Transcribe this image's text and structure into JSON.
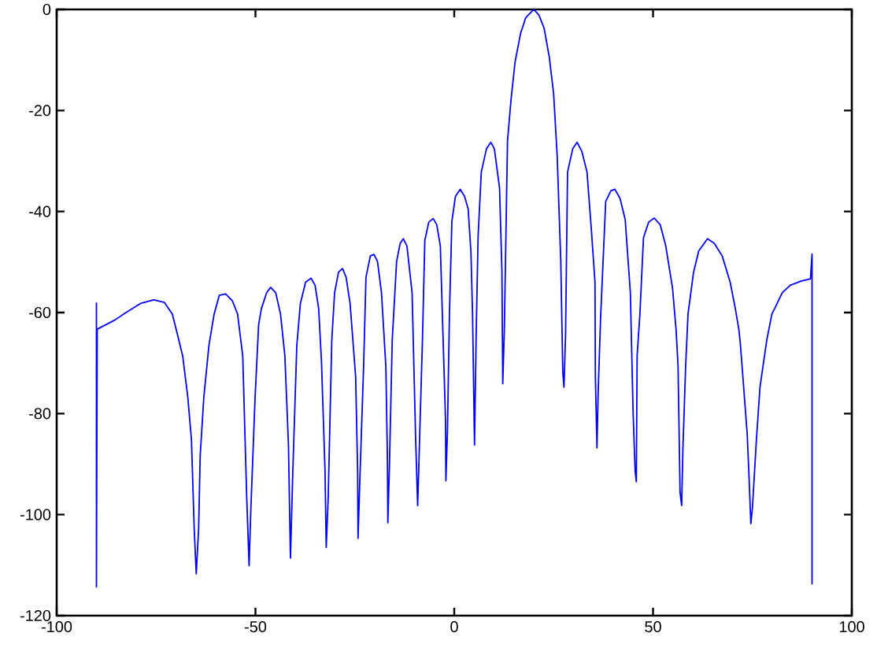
{
  "chart_data": {
    "type": "line",
    "x": [
      -90,
      -90,
      -89.8,
      -85.4,
      -82.8,
      -78.9,
      -75.6,
      -72.9,
      -70.9,
      -69.6,
      -68.3,
      -67.0,
      -66.1,
      -65.4,
      -64.9,
      -64.3,
      -63.9,
      -63.0,
      -61.7,
      -60.4,
      -59.1,
      -57.5,
      -55.8,
      -54.5,
      -53.2,
      -52.2,
      -51.6,
      -51.2,
      -50.1,
      -49.2,
      -48.5,
      -47.2,
      -46.2,
      -44.9,
      -43.7,
      -42.6,
      -41.7,
      -41.2,
      -40.6,
      -39.6,
      -38.7,
      -37.4,
      -36.0,
      -35.0,
      -34.1,
      -33.4,
      -32.5,
      -32.2,
      -31.7,
      -30.8,
      -30.1,
      -29.1,
      -28.1,
      -27.2,
      -26.2,
      -24.8,
      -24.3,
      -24.2,
      -23.8,
      -22.8,
      -22.2,
      -21.1,
      -20.2,
      -19.3,
      -18.3,
      -17.2,
      -16.8,
      -16.7,
      -16.3,
      -15.6,
      -14.5,
      -13.6,
      -12.8,
      -11.9,
      -10.6,
      -9.7,
      -9.2,
      -8.8,
      -8.0,
      -7.4,
      -6.4,
      -5.3,
      -4.4,
      -3.5,
      -2.2,
      -2.1,
      -1.7,
      -1.2,
      -0.6,
      0.3,
      1.5,
      2.6,
      3.5,
      4.2,
      4.6,
      5.1,
      5.5,
      6.0,
      6.8,
      8.1,
      9.2,
      10.1,
      11.4,
      12.0,
      12.2,
      12.6,
      13.4,
      14.3,
      15.3,
      16.7,
      18.0,
      20,
      21.3,
      22.6,
      23.9,
      25.0,
      25.9,
      26.8,
      27.3,
      27.6,
      28.0,
      28.5,
      29.8,
      30.9,
      32.1,
      33.4,
      34.5,
      35.4,
      35.5,
      35.9,
      36.2,
      36.8,
      38.1,
      39.4,
      40.4,
      41.7,
      43.0,
      44.3,
      45.0,
      45.5,
      45.8,
      46.0,
      46.7,
      47.6,
      48.9,
      50.3,
      51.8,
      53.2,
      54.9,
      55.8,
      56.3,
      56.8,
      57.2,
      57.5,
      58.2,
      58.8,
      60.2,
      61.5,
      63.7,
      65.4,
      67.4,
      69.4,
      70.7,
      71.6,
      72.0,
      72.6,
      73.7,
      74.2,
      74.6,
      75.0,
      76.0,
      76.9,
      78.6,
      79.9,
      80.6,
      82.5,
      84.5,
      87.2,
      89.6,
      90,
      90
    ],
    "values": [
      -58.0,
      -114.3,
      -63.3,
      -61.5,
      -60.1,
      -58.2,
      -57.5,
      -58.0,
      -60.3,
      -64.4,
      -68.6,
      -76.9,
      -85.2,
      -102.9,
      -111.7,
      -102.9,
      -88.3,
      -76.9,
      -66.5,
      -60.3,
      -56.6,
      -56.3,
      -57.7,
      -60.3,
      -68.6,
      -96.6,
      -110.1,
      -99.8,
      -76.9,
      -62.4,
      -59.2,
      -56.1,
      -55.0,
      -56.1,
      -60.3,
      -68.6,
      -86.2,
      -108.6,
      -91.4,
      -66.5,
      -58.2,
      -54.0,
      -53.2,
      -54.6,
      -59.2,
      -69.6,
      -91.4,
      -106.5,
      -96.6,
      -65.5,
      -56.1,
      -52.0,
      -51.3,
      -53.0,
      -58.2,
      -72.7,
      -91.4,
      -104.7,
      -94.5,
      -70.7,
      -53.0,
      -48.8,
      -48.5,
      -49.9,
      -56.1,
      -70.7,
      -89.3,
      -101.6,
      -90.4,
      -65.5,
      -49.9,
      -46.3,
      -45.4,
      -46.8,
      -56.1,
      -85.2,
      -98.2,
      -87.3,
      -65.5,
      -45.7,
      -42.1,
      -41.4,
      -42.6,
      -46.8,
      -81.1,
      -93.3,
      -83.1,
      -60.0,
      -42.0,
      -37.0,
      -35.6,
      -37.0,
      -39.5,
      -48.0,
      -60.0,
      -86.2,
      -65.0,
      -45.0,
      -32.2,
      -27.6,
      -26.3,
      -27.6,
      -35.4,
      -52.0,
      -74.1,
      -63.4,
      -26.0,
      -17.7,
      -10.4,
      -4.7,
      -1.6,
      0.0,
      -1.1,
      -3.7,
      -9.4,
      -16.7,
      -29.1,
      -49.9,
      -71.7,
      -74.8,
      -64.4,
      -32.2,
      -27.6,
      -26.3,
      -28.1,
      -32.2,
      -43.7,
      -54.0,
      -72.7,
      -86.8,
      -75.8,
      -61.3,
      -38.0,
      -35.9,
      -35.6,
      -37.4,
      -41.6,
      -56.1,
      -80.0,
      -91.4,
      -93.5,
      -68.6,
      -60.3,
      -45.2,
      -42.1,
      -41.3,
      -42.6,
      -46.8,
      -55.1,
      -63.4,
      -70.7,
      -95.6,
      -98.2,
      -87.3,
      -70.7,
      -60.3,
      -52.0,
      -47.8,
      -45.4,
      -46.3,
      -48.8,
      -54.0,
      -59.2,
      -63.4,
      -66.5,
      -72.7,
      -84.2,
      -93.5,
      -101.8,
      -98.7,
      -85.2,
      -74.8,
      -65.5,
      -60.3,
      -59.2,
      -56.1,
      -54.6,
      -53.8,
      -53.3,
      -48.4,
      -113.8
    ],
    "color": "#0000ff",
    "line_style": "solid",
    "marker": "none",
    "xlim": [
      -100,
      100
    ],
    "ylim": [
      -120,
      0
    ],
    "xticks": [
      -100,
      -50,
      0,
      50,
      100
    ],
    "yticks": [
      -120,
      -100,
      -80,
      -60,
      -40,
      -20,
      0
    ]
  }
}
